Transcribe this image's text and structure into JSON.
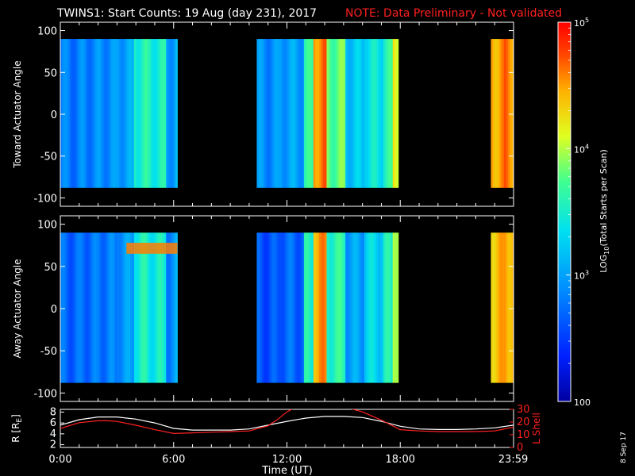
{
  "title": {
    "main": "TWINS1: Start Counts: 19 Aug (day 231), 2017",
    "note": "NOTE: Data Preliminary - Not validated"
  },
  "date_stamp": "8 Sep 17",
  "chart_data": [
    {
      "type": "heatmap",
      "name": "panel-toward",
      "ylabel": "Toward Actuator Angle",
      "ylim": [
        -110,
        110
      ],
      "yticks": [
        100,
        50,
        0,
        -50,
        -100
      ],
      "ytick_labels": [
        "100",
        "50",
        "0",
        "-50",
        "-100"
      ],
      "xlim": [
        0,
        24
      ],
      "data_coverage_hours": [
        [
          0,
          6.2
        ],
        [
          10.4,
          17.9
        ],
        [
          22.8,
          24
        ]
      ],
      "angle_range": [
        -88,
        90
      ],
      "log10_counts_by_hour": [
        {
          "t": 0.0,
          "v": 2.8
        },
        {
          "t": 1.0,
          "v": 2.85
        },
        {
          "t": 2.0,
          "v": 2.9
        },
        {
          "t": 3.0,
          "v": 3.0
        },
        {
          "t": 3.9,
          "v": 3.55
        },
        {
          "t": 4.6,
          "v": 3.5
        },
        {
          "t": 5.5,
          "v": 3.0
        },
        {
          "t": 6.0,
          "v": 3.1
        },
        {
          "t": 10.4,
          "v": 2.9
        },
        {
          "t": 11.5,
          "v": 3.0
        },
        {
          "t": 12.8,
          "v": 3.6
        },
        {
          "t": 13.3,
          "v": 4.6
        },
        {
          "t": 14.0,
          "v": 3.8
        },
        {
          "t": 15.0,
          "v": 3.2
        },
        {
          "t": 16.0,
          "v": 3.4
        },
        {
          "t": 17.0,
          "v": 3.6
        },
        {
          "t": 17.6,
          "v": 4.2
        },
        {
          "t": 22.8,
          "v": 4.5
        },
        {
          "t": 23.5,
          "v": 4.6
        }
      ]
    },
    {
      "type": "heatmap",
      "name": "panel-away",
      "ylabel": "Away Actuator Angle",
      "ylim": [
        -110,
        110
      ],
      "yticks": [
        100,
        50,
        0,
        -50,
        -100
      ],
      "ytick_labels": [
        "100",
        "50",
        "0",
        "-50",
        "-100"
      ],
      "xlim": [
        0,
        24
      ],
      "data_coverage_hours": [
        [
          0,
          6.2
        ],
        [
          10.4,
          17.9
        ],
        [
          22.8,
          24
        ]
      ],
      "angle_range": [
        -88,
        90
      ],
      "log10_counts_by_hour": [
        {
          "t": 0.0,
          "v": 2.7
        },
        {
          "t": 1.0,
          "v": 2.75
        },
        {
          "t": 2.0,
          "v": 2.8
        },
        {
          "t": 3.0,
          "v": 2.95
        },
        {
          "t": 3.9,
          "v": 3.5
        },
        {
          "t": 4.6,
          "v": 3.45
        },
        {
          "t": 5.5,
          "v": 2.9
        },
        {
          "t": 6.0,
          "v": 3.0
        },
        {
          "t": 10.4,
          "v": 2.6
        },
        {
          "t": 11.5,
          "v": 2.7
        },
        {
          "t": 12.8,
          "v": 3.5
        },
        {
          "t": 13.3,
          "v": 4.5
        },
        {
          "t": 14.0,
          "v": 3.6
        },
        {
          "t": 15.0,
          "v": 3.0
        },
        {
          "t": 16.0,
          "v": 3.3
        },
        {
          "t": 17.0,
          "v": 3.5
        },
        {
          "t": 17.6,
          "v": 4.1
        },
        {
          "t": 22.8,
          "v": 4.4
        },
        {
          "t": 23.5,
          "v": 4.5
        }
      ],
      "hot_feature": {
        "t_range": [
          3.5,
          6.2
        ],
        "angle_range": [
          65,
          78
        ],
        "v": 4.6
      }
    },
    {
      "type": "line",
      "name": "panel-orbit",
      "ylabel_left": "R [R",
      "ylabel_left_sub": "E",
      "ylabel_left_close": "]",
      "ylabel_right": "L Shell",
      "ylim_left": [
        1.5,
        8.5
      ],
      "yticks_left": [
        "8",
        "6",
        "4",
        "2"
      ],
      "ylim_right": [
        0,
        30
      ],
      "yticks_right": [
        "30",
        "20",
        "10",
        "0"
      ],
      "xlim": [
        0,
        24
      ],
      "xtick_labels": [
        "0:00",
        "6:00",
        "12:00",
        "18:00",
        "23:59"
      ],
      "xtick_hours": [
        0,
        6,
        12,
        18,
        23.98
      ],
      "xlabel": "Time (UT)",
      "series": [
        {
          "color": "#ffffff",
          "axis": "left",
          "x": [
            0,
            1,
            2,
            3,
            4,
            5,
            6,
            7,
            8,
            9,
            10,
            11,
            12,
            13,
            14,
            15,
            16,
            17,
            18,
            19,
            20,
            21,
            22,
            23,
            24
          ],
          "y": [
            5.6,
            6.6,
            7.1,
            7.1,
            6.7,
            6.0,
            5.0,
            4.7,
            4.7,
            4.7,
            4.9,
            5.6,
            6.3,
            6.9,
            7.2,
            7.2,
            7.0,
            6.3,
            5.4,
            4.9,
            4.8,
            4.8,
            4.9,
            5.1,
            5.6
          ]
        },
        {
          "color": "#ff2020",
          "axis": "right",
          "x": [
            0,
            1,
            2,
            2.5,
            3,
            4,
            5,
            6,
            7,
            8,
            9,
            10,
            11,
            11.5,
            12,
            12.5,
            15,
            16,
            17,
            18,
            19,
            20,
            21,
            22,
            23,
            24
          ],
          "y": [
            15,
            19.5,
            21,
            21,
            20.5,
            17.5,
            14,
            11,
            11.5,
            12,
            12.5,
            13,
            17,
            22,
            28,
            32,
            32,
            28,
            21.5,
            14,
            13,
            12.5,
            12.5,
            12.5,
            13,
            16
          ]
        }
      ]
    },
    {
      "type": "colorbar",
      "name": "colorbar",
      "label": "LOG",
      "label_sub": "10",
      "label_rest": "(Total Starts per Scan)",
      "scale": "log",
      "range": [
        100,
        100000
      ],
      "tick_labels": [
        {
          "base": "10",
          "exp": "5",
          "v": 5
        },
        {
          "base": "10",
          "exp": "4",
          "v": 4
        },
        {
          "base": "10",
          "exp": "3",
          "v": 3
        },
        {
          "base": "100",
          "exp": "",
          "v": 2
        }
      ]
    }
  ]
}
